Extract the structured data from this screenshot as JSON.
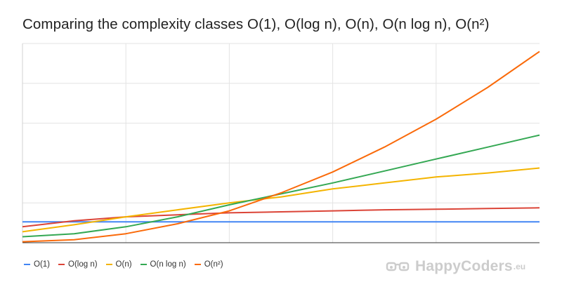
{
  "chart_data": {
    "type": "line",
    "title": "Comparing the complexity classes O(1), O(log n), O(n), O(n log n), O(n²)",
    "xlabel": "",
    "ylabel": "",
    "x": [
      0,
      1,
      2,
      3,
      4,
      5,
      6,
      7,
      8,
      9,
      10
    ],
    "xlim": [
      0,
      10
    ],
    "ylim": [
      0,
      100
    ],
    "grid": true,
    "legend_position": "bottom-left",
    "series": [
      {
        "name": "O(1)",
        "color": "#4285f4",
        "values": [
          10.5,
          10.5,
          10.5,
          10.5,
          10.5,
          10.5,
          10.5,
          10.5,
          10.5,
          10.5,
          10.5
        ]
      },
      {
        "name": "O(log n)",
        "color": "#db4437",
        "values": [
          8,
          11,
          13,
          14,
          15,
          15.5,
          16,
          16.5,
          16.8,
          17.2,
          17.5
        ]
      },
      {
        "name": "O(n)",
        "color": "#f4b400",
        "values": [
          5.5,
          9,
          13,
          16.5,
          20,
          23,
          27,
          30,
          33,
          35,
          37.5
        ]
      },
      {
        "name": "O(n log n)",
        "color": "#34a853",
        "values": [
          3,
          4.5,
          8,
          13,
          19,
          24.5,
          30,
          36,
          42,
          48,
          54
        ]
      },
      {
        "name": "O(n²)",
        "color": "#fa6a0a",
        "values": [
          0.5,
          1.5,
          4.5,
          9.5,
          16,
          25,
          35.5,
          48,
          62,
          78,
          96
        ]
      }
    ]
  },
  "watermark": {
    "text": "HappyCoders",
    "tld": ".eu",
    "icon": "glasses-icon"
  }
}
